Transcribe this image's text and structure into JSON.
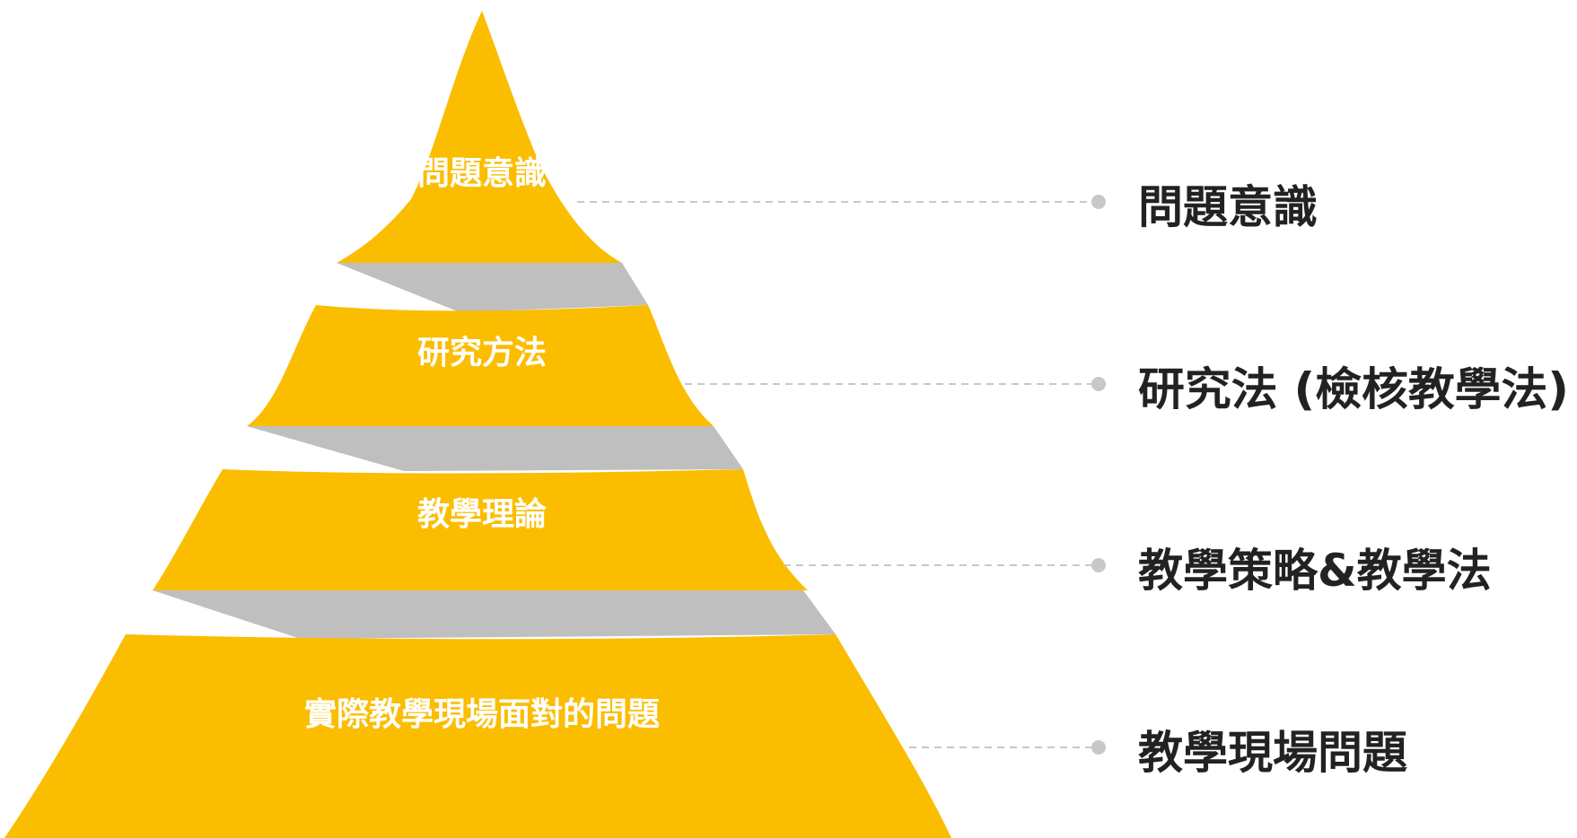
{
  "colors": {
    "tier_fill": "#FBBD00",
    "connector_fill": "#BFBFBF",
    "tier_text": "#FFFFFF",
    "right_text": "#222222",
    "leader_line": "#C8C8C8"
  },
  "pyramid": {
    "tiers": [
      {
        "label": "問題意識"
      },
      {
        "label": "研究方法"
      },
      {
        "label": "教學理論"
      },
      {
        "label": "實際教學現場面對的問題"
      }
    ]
  },
  "right_labels": [
    {
      "label": "問題意識"
    },
    {
      "label": "研究法 (檢核教學法)"
    },
    {
      "label": "教學策略&教學法"
    },
    {
      "label": "教學現場問題"
    }
  ]
}
